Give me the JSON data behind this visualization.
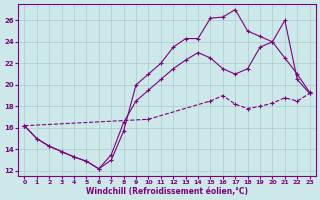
{
  "xlabel": "Windchill (Refroidissement éolien,°C)",
  "bg_color": "#cce8e8",
  "line_color": "#800080",
  "grid_color": "#aacccc",
  "xlim": [
    -0.5,
    23.5
  ],
  "ylim": [
    11.5,
    27.5
  ],
  "yticks": [
    12,
    14,
    16,
    18,
    20,
    22,
    24,
    26
  ],
  "xticks": [
    0,
    1,
    2,
    3,
    4,
    5,
    6,
    7,
    8,
    9,
    10,
    11,
    12,
    13,
    14,
    15,
    16,
    17,
    18,
    19,
    20,
    21,
    22,
    23
  ],
  "line1_x": [
    0,
    1,
    2,
    3,
    4,
    5,
    6,
    7,
    8,
    9,
    10,
    11,
    12,
    13,
    14,
    15,
    16,
    17,
    18,
    19,
    20,
    21,
    22,
    23
  ],
  "line1_y": [
    16.2,
    15.0,
    14.3,
    13.8,
    13.3,
    12.9,
    12.2,
    13.0,
    15.7,
    20.0,
    21.0,
    22.0,
    23.5,
    24.3,
    24.3,
    26.2,
    26.3,
    27.0,
    25.0,
    24.5,
    24.0,
    26.0,
    20.5,
    19.2
  ],
  "line2_x": [
    0,
    10,
    15,
    16,
    17,
    18,
    19,
    20,
    21,
    22,
    23
  ],
  "line2_y": [
    16.2,
    16.8,
    18.5,
    19.0,
    18.2,
    17.8,
    18.0,
    18.3,
    18.8,
    18.5,
    19.2
  ],
  "line3_x": [
    0,
    1,
    2,
    3,
    4,
    5,
    6,
    7,
    8,
    9,
    10,
    11,
    12,
    13,
    14,
    15,
    16,
    17,
    18,
    19,
    20,
    21,
    22,
    23
  ],
  "line3_y": [
    16.2,
    15.0,
    14.3,
    13.8,
    13.3,
    12.9,
    12.2,
    13.5,
    16.5,
    18.5,
    19.5,
    20.5,
    21.5,
    22.3,
    23.0,
    22.5,
    21.5,
    21.0,
    21.5,
    23.5,
    24.0,
    22.5,
    21.0,
    19.3
  ]
}
